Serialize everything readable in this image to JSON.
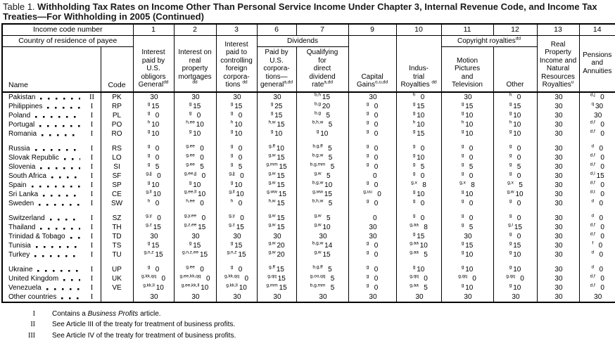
{
  "title": {
    "label": "Table 1.",
    "bold": "Withholding Tax Rates on Income Other Than Personal Service Income Under Chapter 3, Internal Revenue Code, and Income Tax Treaties—For Withholding in 2005 (Continued)"
  },
  "header": {
    "income_code": "Income code number",
    "country": "Country of residence of payee",
    "name": "Name",
    "code": "Code",
    "numbers": [
      "1",
      "2",
      "3",
      "6",
      "7",
      "9",
      "10",
      "11",
      "12",
      "13",
      "14"
    ],
    "dividends_band": "Dividends",
    "copyright_band": {
      "label": "Copyright royalties",
      "sup": "dd"
    },
    "columns": [
      {
        "label": "Interest\npaid by\nU.S.\nobligors\nGeneral",
        "sup": "dd"
      },
      {
        "label": "Interest on\nreal\nproperty\nmortgages ",
        "sup": "dd"
      },
      {
        "label": "Interest\npaid to\ncontrolling\nforeign\ncorpora-\ntions ",
        "sup": "dd"
      },
      {
        "label": "Paid by\nU.S.\ncorpora-\ntions—\ngeneral",
        "sup": "a,dd"
      },
      {
        "label": "Qualifying\nfor\ndirect\ndividend\nrate",
        "sup": "a,dd"
      },
      {
        "label": "Capital\nGains",
        "sup": "o,u,dd"
      },
      {
        "label": "Indus-\ntrial\nRoyalties ",
        "sup": "dd"
      },
      {
        "label": "Motion\nPictures\nand\nTelevision",
        "sup": ""
      },
      {
        "label": "Other",
        "sup": ""
      },
      {
        "label": "Real\nProperty\nIncome and\nNatural\nResources\nRoyalties",
        "sup": "u"
      },
      {
        "label": "Pensions\nand\nAnnuities",
        "sup": ""
      }
    ]
  },
  "rows": [
    {
      "name": "Pakistan",
      "roman": "II",
      "code": "PK",
      "cells": [
        "30",
        "30",
        "30",
        "30",
        "b,h|15",
        "30",
        "h|0",
        "30",
        "h|0",
        "30",
        "d,j|0"
      ]
    },
    {
      "name": "Philippines",
      "roman": "I",
      "code": "RP",
      "cells": [
        "g|15",
        "g|15",
        "g|15",
        "g|25",
        "b,g|20",
        "g|0",
        "g|15",
        "g|15",
        "g|15",
        "30",
        "q|30"
      ]
    },
    {
      "name": "Poland",
      "roman": "I",
      "code": "PL",
      "cells": [
        "g|0",
        "g|0",
        "g|0",
        "g|15",
        "b,g|5",
        "g|0",
        "g|10",
        "g|10",
        "g|10",
        "30",
        "30"
      ]
    },
    {
      "name": "Portugal",
      "roman": "I",
      "code": "PO",
      "cells": [
        "h|10",
        "h,ee|10",
        "h|10",
        "h,w|15",
        "b,h,w|5",
        "g|0",
        "h|10",
        "h|10",
        "h|10",
        "30",
        "d,f|0"
      ]
    },
    {
      "name": "Romania",
      "roman": "I",
      "code": "RO",
      "cells": [
        "g|10",
        "g|10",
        "g|10",
        "g|10",
        "g|10",
        "g|0",
        "g|15",
        "g|10",
        "g|10",
        "30",
        "d,f|0"
      ]
    },
    {
      "gap": true
    },
    {
      "name": "Russia",
      "roman": "I",
      "code": "RS",
      "cells": [
        "g|0",
        "g,ee|0",
        "g|0",
        "g,ff|10",
        "b,g,ff|5",
        "g|0",
        "g|0",
        "g|0",
        "g|0",
        "30",
        "d|0"
      ]
    },
    {
      "name": "Slovak Republic",
      "roman": "I",
      "code": "LO",
      "cells": [
        "g|0",
        "g,ee|0",
        "g|0",
        "g,w|15",
        "b,g,w|5",
        "g|0",
        "g|10",
        "g|0",
        "g|0",
        "30",
        "d,f|0"
      ]
    },
    {
      "name": "Slovenia",
      "roman": "I",
      "code": "SI",
      "cells": [
        "g|5",
        "g,ee|5",
        "g|5",
        "g,mm|15",
        "b,g,mm|5",
        "g|0",
        "g|5",
        "g|5",
        "g|5",
        "30",
        "d,f|0"
      ]
    },
    {
      "name": "South Africa",
      "roman": "I",
      "code": "SF",
      "cells": [
        "g,jj|0",
        "g,ee,jj|0",
        "g,jj|0",
        "g,w|15",
        "g,w|5",
        "0",
        "g|0",
        "g|0",
        "g|0",
        "30",
        "d,l|15"
      ]
    },
    {
      "name": "Spain",
      "roman": "I",
      "code": "SP",
      "cells": [
        "g|10",
        "g|10",
        "g|10",
        "g,w|15",
        "b,g,w|10",
        "g|0",
        "g,x|8",
        "g,x|8",
        "g,x|5",
        "30",
        "d,f|0"
      ]
    },
    {
      "name": "Sri Lanka",
      "roman": "I",
      "code": "CE",
      "cells": [
        "g,ll|10",
        "g,ee,ll|10",
        "g,ll|10",
        "g,ww|15",
        "g,ww|15",
        "g,uu|0",
        "g|10",
        "g|10",
        "g,w|10",
        "30",
        "d,t|0"
      ]
    },
    {
      "name": "Sweden",
      "roman": "I",
      "code": "SW",
      "cells": [
        "h|0",
        "h,ee|0",
        "h|0",
        "h,w|15",
        "b,h,w|5",
        "g|0",
        "g|0",
        "g|0",
        "g|0",
        "30",
        "d|0"
      ]
    },
    {
      "gap": true
    },
    {
      "name": "Switzerland",
      "roman": "I",
      "code": "SZ",
      "cells": [
        "g,y|0",
        "g,y,ee|0",
        "g,y|0",
        "g,w|15",
        "g,w|5",
        "0",
        "g|0",
        "g|0",
        "g|0",
        "30",
        "d|0"
      ]
    },
    {
      "name": "Thailand",
      "roman": "I",
      "code": "TH",
      "cells": [
        "g,z|15",
        "g,z,ee|15",
        "g,z|15",
        "g,w|15",
        "g,w|10",
        "30",
        "g,aa|8",
        "g|5",
        "g,i|15",
        "30",
        "d,f|0"
      ]
    },
    {
      "name": "Trinidad & Tobago",
      "roman": "I",
      "code": "TD",
      "cells": [
        "30",
        "30",
        "30",
        "30",
        "30",
        "30",
        "g|15",
        "30",
        "g|0",
        "30",
        "d,f|0"
      ]
    },
    {
      "name": "Tunisia",
      "roman": "I",
      "code": "TS",
      "cells": [
        "g|15",
        "g|15",
        "g|15",
        "g,w|20",
        "b,g,w|14",
        "g|0",
        "g,aa|10",
        "g|15",
        "g|15",
        "30",
        "f|0"
      ]
    },
    {
      "name": "Turkey",
      "roman": "I",
      "code": "TU",
      "cells": [
        "g,n,z|15",
        "g,n,z,ee|15",
        "g,n,z|15",
        "g,w|20",
        "g,w|15",
        "g|0",
        "g,aa|5",
        "g|10",
        "g|10",
        "30",
        "d|0"
      ]
    },
    {
      "gap": true
    },
    {
      "name": "Ukraine",
      "roman": "I",
      "code": "UP",
      "cells": [
        "g|0",
        "g,ee|0",
        "g|0",
        "g,ff|15",
        "b,g,ff|5",
        "g|0",
        "g|10",
        "g|10",
        "g|10",
        "30",
        "d|0"
      ]
    },
    {
      "name": "United Kingdom",
      "roman": "I",
      "code": "UK",
      "cells": [
        "g,kk,qq|0",
        "g,ee,kk,qq|0",
        "g,kk,qq|0",
        "g,qq|15",
        "g,oo,qq|5",
        "g|0",
        "g,qq|0",
        "g,qq|0",
        "g,qq|0",
        "30",
        "d,f|0"
      ]
    },
    {
      "name": "Venezuela",
      "roman": "I",
      "code": "VE",
      "cells": [
        "g,kk,ll|10",
        "g,ee,kk,ll|10",
        "g,kk,ll|10",
        "g,mm|15",
        "b,g,mm|5",
        "g|0",
        "g,aa|5",
        "g|10",
        "g|10",
        "30",
        "d,f|0"
      ]
    },
    {
      "name": "Other countries",
      "roman": "I",
      "code": "",
      "cells": [
        "30",
        "30",
        "30",
        "30",
        "30",
        "30",
        "30",
        "30",
        "30",
        "30",
        "30"
      ]
    }
  ],
  "footnotes": [
    {
      "marker": "I",
      "pre": "Contains a ",
      "italic": "Business Profits",
      "post": " article."
    },
    {
      "marker": "II",
      "pre": "See Article III of the treaty for treatment of business profits.",
      "italic": "",
      "post": ""
    },
    {
      "marker": "III",
      "pre": "See Article IV of the treaty for treatment of business profits.",
      "italic": "",
      "post": ""
    }
  ]
}
